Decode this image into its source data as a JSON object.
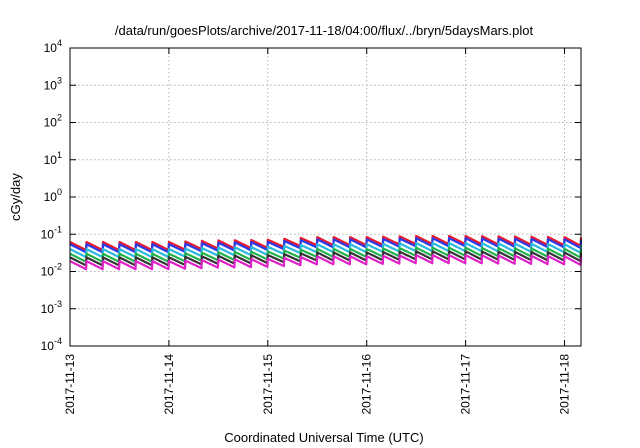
{
  "chart_data": {
    "type": "line",
    "title": "/data/run/goesPlots/archive/2017-11-18/04:00/flux/../bryn/5daysMars.plot",
    "xlabel": "Coordinated Universal Time (UTC)",
    "ylabel": "cGy/day",
    "yscale": "log",
    "ylim": [
      0.0001,
      10000
    ],
    "xlim": [
      "2017-11-13T00:00",
      "2017-11-18T04:00"
    ],
    "x_tick_labels": [
      "2017-11-13",
      "2017-11-14",
      "2017-11-15",
      "2017-11-16",
      "2017-11-17",
      "2017-11-18"
    ],
    "y_ticks": [
      {
        "value": 0.0001,
        "base": "10",
        "exp": "-4"
      },
      {
        "value": 0.001,
        "base": "10",
        "exp": "-3"
      },
      {
        "value": 0.01,
        "base": "10",
        "exp": "-2"
      },
      {
        "value": 0.1,
        "base": "10",
        "exp": "-1"
      },
      {
        "value": 1,
        "base": "10",
        "exp": "0"
      },
      {
        "value": 10,
        "base": "10",
        "exp": "1"
      },
      {
        "value": 100,
        "base": "10",
        "exp": "2"
      },
      {
        "value": 1000,
        "base": "10",
        "exp": "3"
      },
      {
        "value": 10000,
        "base": "10",
        "exp": "4"
      }
    ],
    "grid": true,
    "cycle_hours": 4,
    "cycle_shape": "sawtooth: peak at start of each cycle, decaying to about 60% of peak before the next jump",
    "envelope": {
      "x": [
        "2017-11-13T00:00",
        "2017-11-14T00:00",
        "2017-11-14T12:00",
        "2017-11-15T00:00",
        "2017-11-15T12:00",
        "2017-11-16T00:00",
        "2017-11-16T12:00",
        "2017-11-17T00:00",
        "2017-11-17T12:00",
        "2017-11-18T00:00",
        "2017-11-18T04:00"
      ],
      "factor": [
        1.0,
        1.0,
        1.1,
        1.15,
        1.35,
        1.35,
        1.45,
        1.45,
        1.4,
        1.35,
        1.3
      ]
    },
    "series": [
      {
        "color": "#e8192c",
        "base_peak": 0.062
      },
      {
        "color": "#2a3ae8",
        "base_peak": 0.054
      },
      {
        "color": "#2ab8e0",
        "base_peak": 0.04
      },
      {
        "color": "#22b24c",
        "base_peak": 0.03
      },
      {
        "color": "#333333",
        "base_peak": 0.024
      },
      {
        "color": "#e020c8",
        "base_peak": 0.019
      }
    ]
  }
}
